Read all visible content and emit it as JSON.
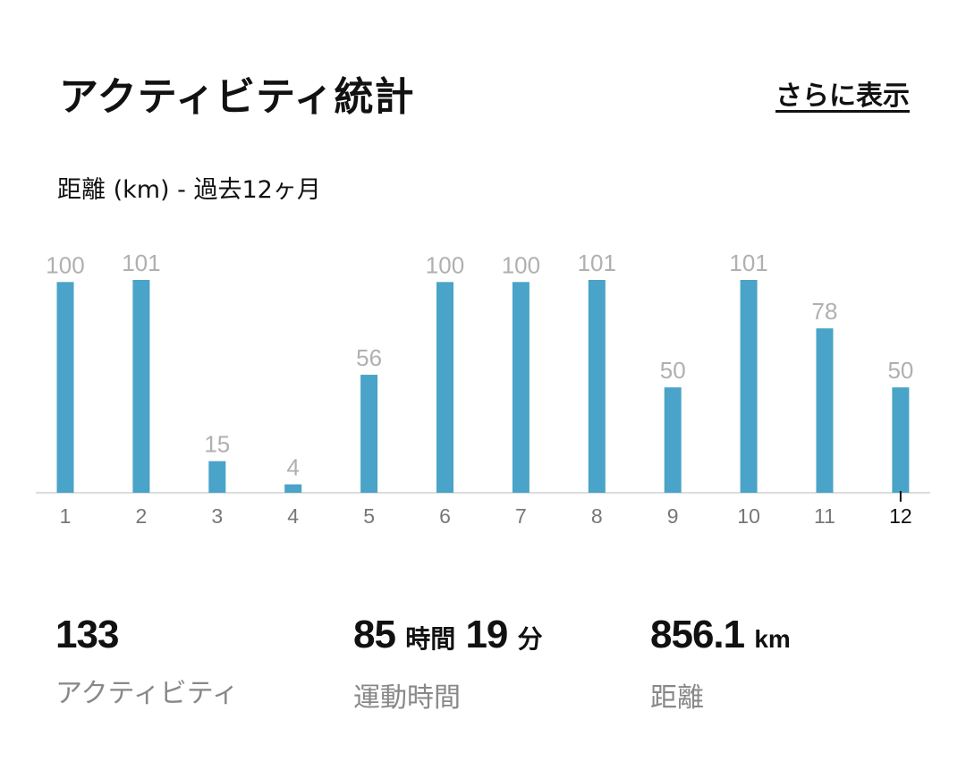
{
  "header": {
    "title": "アクティビティ統計",
    "more_link": "さらに表示"
  },
  "chart_data": {
    "type": "bar",
    "title": "距離 (km) - 過去12ヶ月",
    "categories": [
      "1",
      "2",
      "3",
      "4",
      "5",
      "6",
      "7",
      "8",
      "9",
      "10",
      "11",
      "12"
    ],
    "values": [
      100,
      101,
      15,
      4,
      56,
      100,
      100,
      101,
      50,
      101,
      78,
      50
    ],
    "current_category": "12",
    "ylim": [
      0,
      101
    ],
    "grid": false,
    "bar_color": "#4aa3c8"
  },
  "stats": {
    "activities": {
      "value": "133",
      "label": "アクティビティ"
    },
    "duration": {
      "hours": "85",
      "hours_unit": "時間",
      "minutes": "19",
      "minutes_unit": "分",
      "label": "運動時間"
    },
    "distance": {
      "value": "856.1",
      "unit": "km",
      "label": "距離"
    }
  }
}
